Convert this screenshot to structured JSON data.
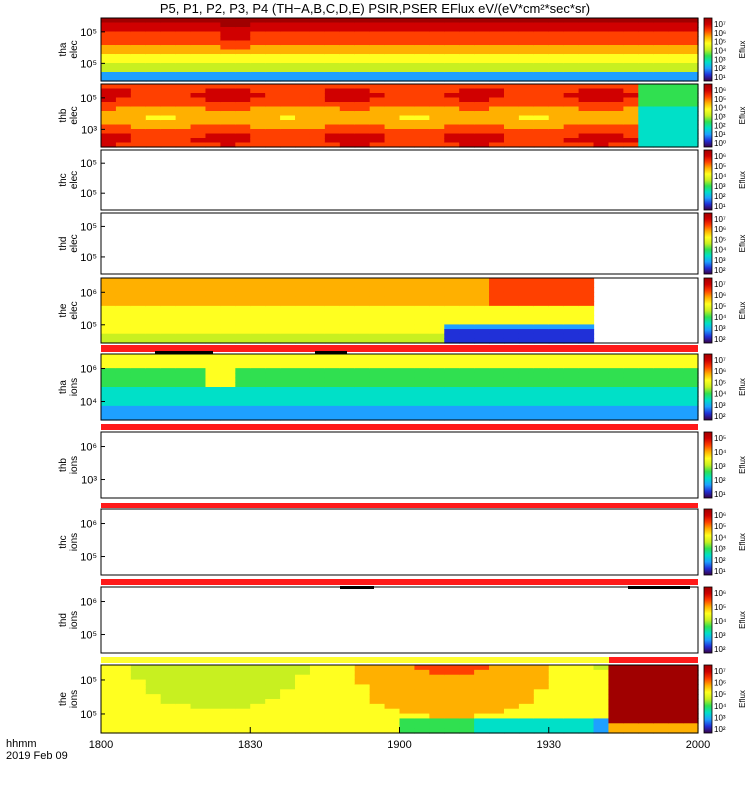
{
  "chart_data": {
    "type": "heatmap",
    "title": "P5, P1, P2, P3, P4 (TH−A,B,C,D,E) PSIR,PSER EFlux eV/(eV*cm²*sec*sr)",
    "x_ticks": [
      "1800",
      "1830",
      "1900",
      "1930",
      "2000"
    ],
    "x_range": [
      "18:00",
      "20:00"
    ],
    "footer": {
      "label": "hhmm",
      "date": "2019 Feb 09"
    },
    "colorbar_label": "Eflux",
    "panels": [
      {
        "id": "tha-elec",
        "ylabel": [
          "tha",
          "elec"
        ],
        "yscale": "log",
        "y_ticks": [
          "10⁵",
          "10⁵"
        ],
        "has_data": true,
        "colorbar_ticks": [
          "10⁷",
          "10⁶",
          "10⁵",
          "10⁴",
          "10³",
          "10²",
          "10¹"
        ]
      },
      {
        "id": "thb-elec",
        "ylabel": [
          "thb",
          "elec"
        ],
        "yscale": "log",
        "y_ticks": [
          "10⁵",
          "10³"
        ],
        "has_data": true,
        "colorbar_ticks": [
          "10⁶",
          "10⁵",
          "10⁴",
          "10³",
          "10²",
          "10¹",
          "10⁰"
        ]
      },
      {
        "id": "thc-elec",
        "ylabel": [
          "thc",
          "elec"
        ],
        "yscale": "log",
        "y_ticks": [
          "10⁵",
          "10⁵"
        ],
        "has_data": false,
        "colorbar_ticks": [
          "10⁶",
          "10⁵",
          "10⁴",
          "10³",
          "10²",
          "10¹"
        ]
      },
      {
        "id": "thd-elec",
        "ylabel": [
          "thd",
          "elec"
        ],
        "yscale": "log",
        "y_ticks": [
          "10⁵",
          "10⁵"
        ],
        "has_data": false,
        "colorbar_ticks": [
          "10⁷",
          "10⁶",
          "10⁵",
          "10⁴",
          "10³",
          "10²"
        ]
      },
      {
        "id": "the-elec",
        "ylabel": [
          "the",
          "elec"
        ],
        "yscale": "log",
        "y_ticks": [
          "10⁶",
          "10⁵"
        ],
        "has_data": true,
        "colorbar_ticks": [
          "10⁷",
          "10⁶",
          "10⁵",
          "10⁴",
          "10³",
          "10²"
        ]
      },
      {
        "id": "tha-ions",
        "ylabel": [
          "tha",
          "ions"
        ],
        "yscale": "log",
        "y_ticks": [
          "10⁶",
          "10⁴"
        ],
        "has_data": true,
        "colorbar_ticks": [
          "10⁷",
          "10⁶",
          "10⁵",
          "10⁴",
          "10³",
          "10²"
        ]
      },
      {
        "id": "thb-ions",
        "ylabel": [
          "thb",
          "ions"
        ],
        "yscale": "log",
        "y_ticks": [
          "10⁶",
          "10³"
        ],
        "has_data": false,
        "colorbar_ticks": [
          "10⁵",
          "10⁴",
          "10³",
          "10²",
          "10¹"
        ]
      },
      {
        "id": "thc-ions",
        "ylabel": [
          "thc",
          "ions"
        ],
        "yscale": "log",
        "y_ticks": [
          "10⁶",
          "10⁵"
        ],
        "has_data": false,
        "colorbar_ticks": [
          "10⁶",
          "10⁵",
          "10⁴",
          "10³",
          "10²",
          "10¹"
        ]
      },
      {
        "id": "thd-ions",
        "ylabel": [
          "thd",
          "ions"
        ],
        "yscale": "log",
        "y_ticks": [
          "10⁶",
          "10⁵"
        ],
        "has_data": false,
        "colorbar_ticks": [
          "10⁶",
          "10⁵",
          "10⁴",
          "10³",
          "10²"
        ]
      },
      {
        "id": "the-ions",
        "ylabel": [
          "the",
          "ions"
        ],
        "yscale": "log",
        "y_ticks": [
          "10⁵",
          "10⁵"
        ],
        "has_data": true,
        "colorbar_ticks": [
          "10⁷",
          "10⁶",
          "10⁵",
          "10⁴",
          "10³",
          "10²"
        ]
      }
    ],
    "colormap": [
      "#3a0046",
      "#2030d8",
      "#1ea0ff",
      "#00e0c8",
      "#30e050",
      "#c8f020",
      "#ffff20",
      "#ffb000",
      "#ff4000",
      "#d00000",
      "#a00000"
    ]
  }
}
